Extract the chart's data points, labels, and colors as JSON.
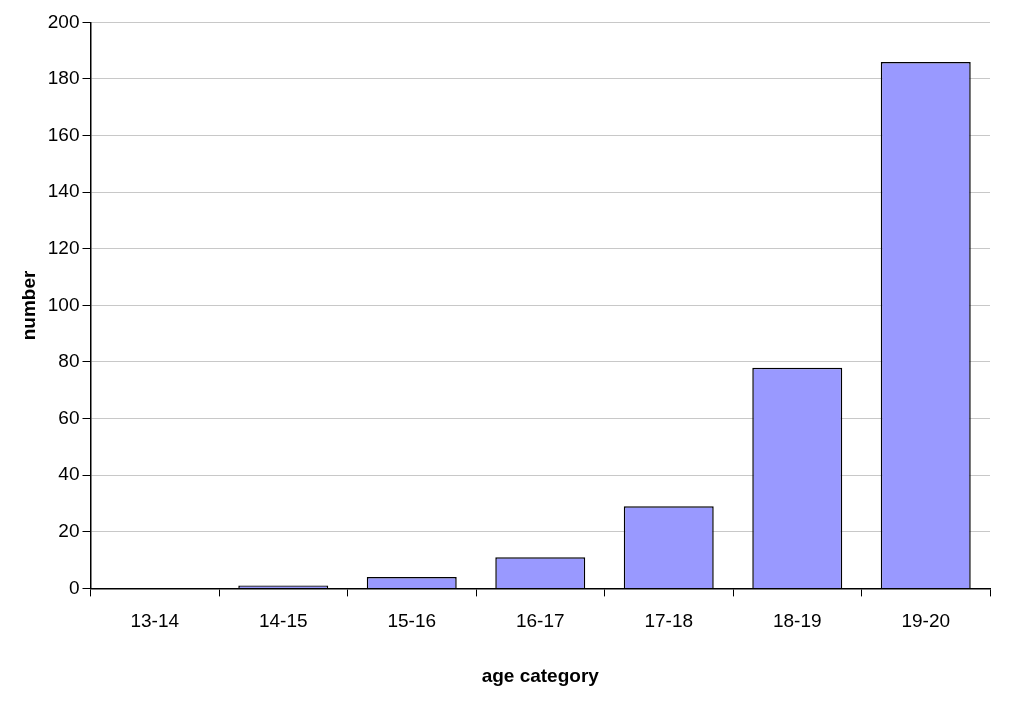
{
  "chart_data": {
    "type": "bar",
    "xlabel": "age category",
    "ylabel": "number",
    "categories": [
      "13-14",
      "14-15",
      "15-16",
      "16-17",
      "17-18",
      "18-19",
      "19-20"
    ],
    "values": [
      0,
      1,
      4,
      11,
      29,
      78,
      186
    ],
    "color": "#9999ff",
    "ylim": [
      0,
      200
    ],
    "yticks": [
      0,
      20,
      40,
      60,
      80,
      100,
      120,
      140,
      160,
      180,
      200
    ],
    "grid": "y",
    "legend": false
  }
}
